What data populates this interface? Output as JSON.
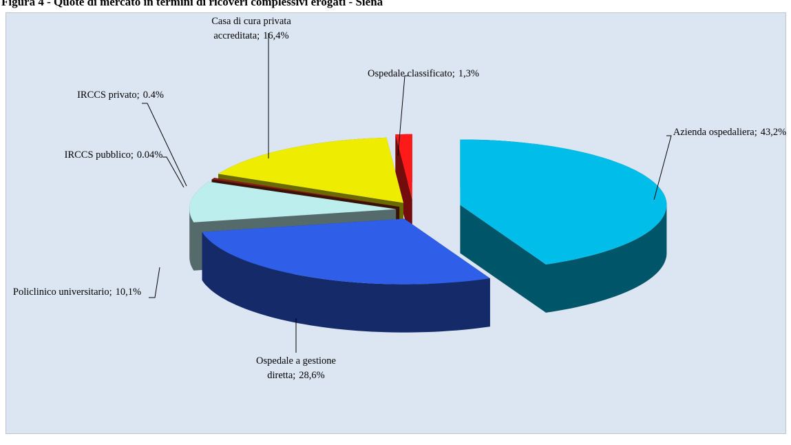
{
  "chart_data": {
    "type": "pie",
    "title": "Figura 4 - Quote di mercato in termini di ricoveri complessivi erogati - Siena",
    "categories": [
      "Azienda ospedaliera;",
      "Ospedale a gestione diretta;",
      "Policlinico  universitario;",
      "IRCCS pubblico;",
      "IRCCS privato;",
      "Casa di cura privata accreditata;",
      "Ospedale classificato;"
    ],
    "values": [
      43.2,
      28.6,
      10.1,
      0.04,
      0.4,
      16.4,
      1.3
    ],
    "value_labels": [
      "43,2%",
      "28,6%",
      "10,1%",
      "0.04%",
      "0.4%",
      "16,4%",
      "1,3%"
    ],
    "colors": [
      "#00bde9",
      "#2f5ee9",
      "#bdeeee",
      "#7a2a10",
      "#8b1a1a",
      "#eeec00",
      "#ff1a1a"
    ]
  }
}
